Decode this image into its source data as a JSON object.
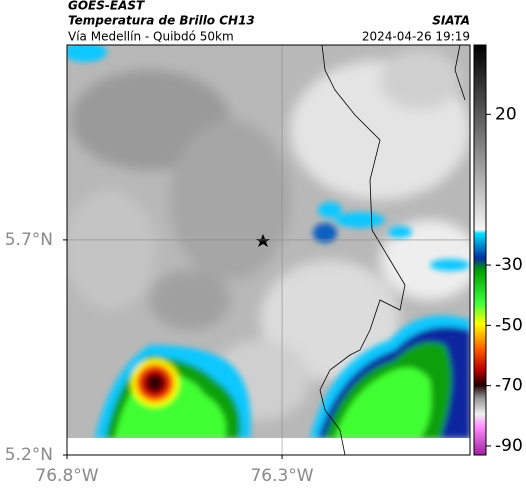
{
  "header": {
    "satellite": "GOES-EAST",
    "product": "Temperatura de Brillo CH13",
    "agency": "SIATA",
    "region": "Vía Medellín - Quibdó 50km",
    "datetime": "2024-04-26 19:19"
  },
  "map": {
    "xlim": [
      -76.8,
      -75.863
    ],
    "ylim": [
      5.2,
      6.153
    ],
    "xticks": [
      {
        "value": -76.8,
        "label": "76.8°W"
      },
      {
        "value": -76.3,
        "label": "76.3°W"
      }
    ],
    "yticks": [
      {
        "value": 5.2,
        "label": "5.2°N"
      },
      {
        "value": 5.7,
        "label": "5.7°N"
      }
    ],
    "grid": true
  },
  "colorbar": {
    "clim": [
      -93,
      43
    ],
    "ticks": [
      20,
      -30,
      -50,
      -70,
      -90
    ]
  }
}
